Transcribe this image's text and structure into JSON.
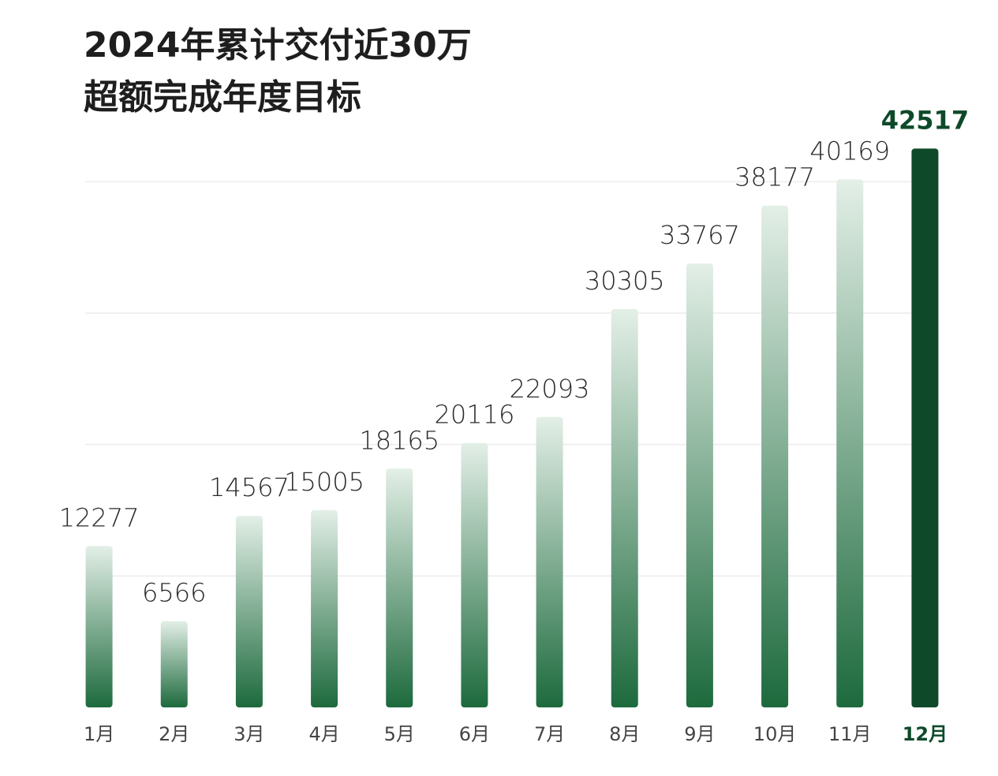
{
  "chart_data": {
    "type": "bar",
    "title": "2024年累计交付近30万",
    "subtitle": "超额完成年度目标",
    "categories": [
      "1月",
      "2月",
      "3月",
      "4月",
      "5月",
      "6月",
      "7月",
      "8月",
      "9月",
      "10月",
      "11月",
      "12月"
    ],
    "values": [
      12277,
      6566,
      14567,
      15005,
      18165,
      20116,
      22093,
      30305,
      33767,
      38177,
      40169,
      42517
    ],
    "gradient": [
      "#e3efe7",
      "#1d6a3d"
    ],
    "highlight_index": 11,
    "highlight_color": "#0e4a2a",
    "ylim": [
      0,
      45000
    ],
    "yticks": [
      10000,
      20000,
      30000,
      40000
    ],
    "grid": true
  }
}
